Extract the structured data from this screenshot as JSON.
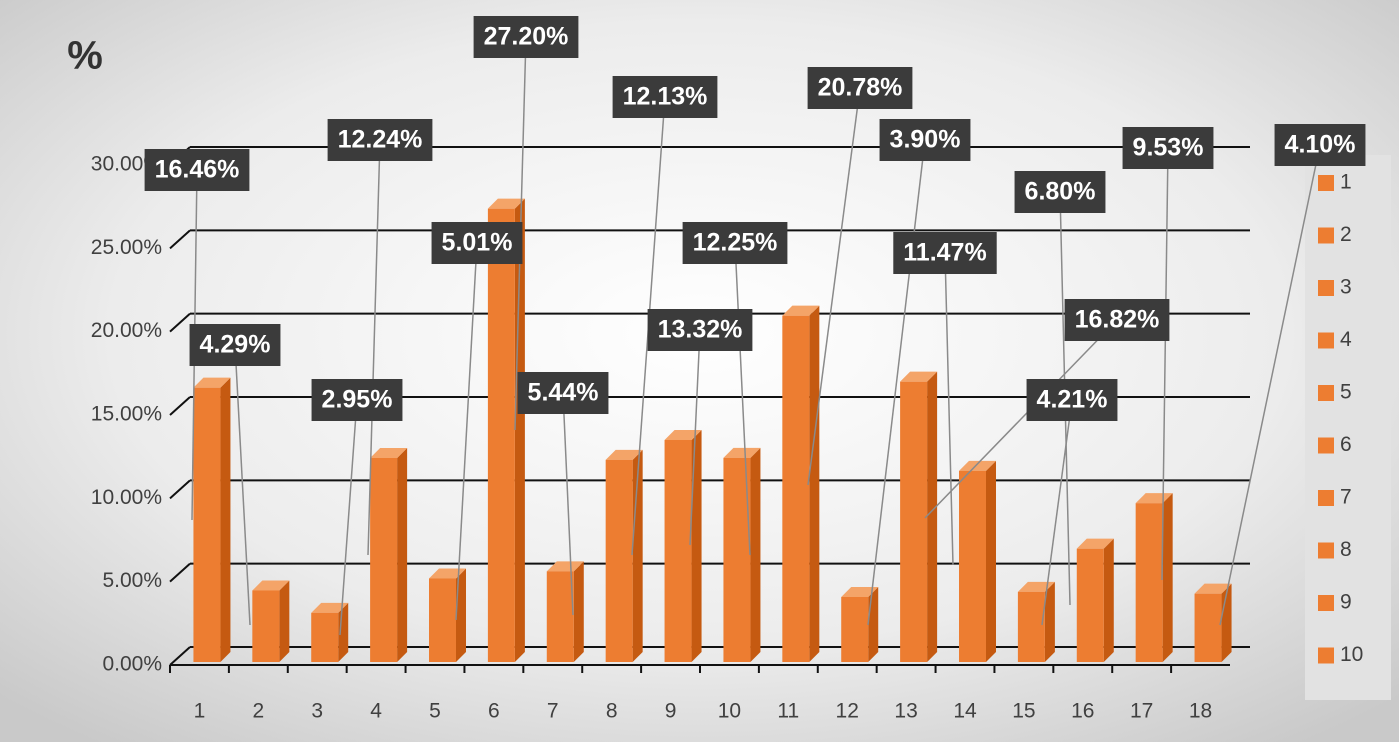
{
  "chart_data": {
    "type": "bar",
    "title": "%",
    "categories": [
      "1",
      "2",
      "3",
      "4",
      "5",
      "6",
      "7",
      "8",
      "9",
      "10",
      "11",
      "12",
      "13",
      "14",
      "15",
      "16",
      "17",
      "18"
    ],
    "values": [
      16.46,
      4.29,
      2.95,
      12.24,
      5.01,
      27.2,
      5.44,
      12.13,
      13.32,
      12.25,
      20.78,
      3.9,
      16.82,
      11.47,
      4.21,
      6.8,
      9.53,
      4.1
    ],
    "value_labels": [
      "16.46%",
      "4.29%",
      "2.95%",
      "12.24%",
      "5.01%",
      "27.20%",
      "5.44%",
      "12.13%",
      "13.32%",
      "12.25%",
      "20.78%",
      "3.90%",
      "16.82%",
      "11.47%",
      "4.21%",
      "6.80%",
      "9.53%",
      "4.10%"
    ],
    "color": "#ed7d31",
    "ylim": [
      0,
      30
    ],
    "yticks": [
      {
        "value": 0,
        "label": "0.00%"
      },
      {
        "value": 5,
        "label": "5.00%"
      },
      {
        "value": 10,
        "label": "10.00%"
      },
      {
        "value": 15,
        "label": "15.00%"
      },
      {
        "value": 20,
        "label": "20.00%"
      },
      {
        "value": 25,
        "label": "25.00%"
      },
      {
        "value": 30,
        "label": "30.00%"
      }
    ],
    "grid": true,
    "legend": "right"
  }
}
